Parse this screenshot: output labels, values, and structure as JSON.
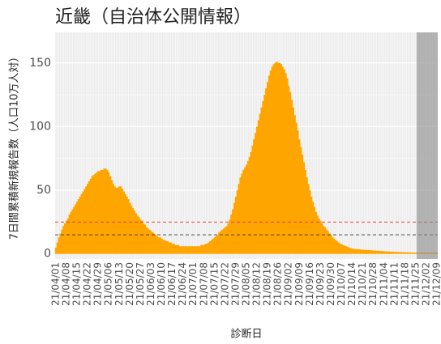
{
  "chart_data": {
    "type": "bar",
    "title": "近畿（自治体公開情報）",
    "xlabel": "診断日",
    "ylabel": "7日間累積新規報告数（人口10万人対）",
    "color": "#ffa500",
    "categories": [
      "21/04/01",
      null,
      null,
      null,
      null,
      null,
      null,
      "21/04/08",
      null,
      null,
      null,
      null,
      null,
      null,
      "21/04/15",
      null,
      null,
      null,
      null,
      null,
      null,
      "21/04/22",
      null,
      null,
      null,
      null,
      null,
      null,
      "21/04/29",
      null,
      null,
      null,
      null,
      null,
      null,
      "21/05/06",
      null,
      null,
      null,
      null,
      null,
      null,
      "21/05/13",
      null,
      null,
      null,
      null,
      null,
      null,
      "21/05/20",
      null,
      null,
      null,
      null,
      null,
      null,
      "21/05/27",
      null,
      null,
      null,
      null,
      null,
      null,
      "21/06/03",
      null,
      null,
      null,
      null,
      null,
      null,
      "21/06/10",
      null,
      null,
      null,
      null,
      null,
      null,
      "21/06/17",
      null,
      null,
      null,
      null,
      null,
      null,
      "21/06/24",
      null,
      null,
      null,
      null,
      null,
      null,
      "21/07/01",
      null,
      null,
      null,
      null,
      null,
      null,
      "21/07/08",
      null,
      null,
      null,
      null,
      null,
      null,
      "21/07/15",
      null,
      null,
      null,
      null,
      null,
      null,
      "21/07/22",
      null,
      null,
      null,
      null,
      null,
      null,
      "21/07/29",
      null,
      null,
      null,
      null,
      null,
      null,
      "21/08/05",
      null,
      null,
      null,
      null,
      null,
      null,
      "21/08/12",
      null,
      null,
      null,
      null,
      null,
      null,
      "21/08/19",
      null,
      null,
      null,
      null,
      null,
      null,
      "21/08/26",
      null,
      null,
      null,
      null,
      null,
      null,
      "21/09/02",
      null,
      null,
      null,
      null,
      null,
      null,
      "21/09/09",
      null,
      null,
      null,
      null,
      null,
      null,
      "21/09/16",
      null,
      null,
      null,
      null,
      null,
      null,
      "21/09/23",
      null,
      null,
      null,
      null,
      null,
      null,
      "21/09/30",
      null,
      null,
      null,
      null,
      null,
      null,
      "21/10/07",
      null,
      null,
      null,
      null,
      null,
      null,
      "21/10/14",
      null,
      null,
      null,
      null,
      null,
      null,
      "21/10/21",
      null,
      null,
      null,
      null,
      null,
      null,
      "21/10/28",
      null,
      null,
      null,
      null,
      null,
      null,
      "21/11/04",
      null,
      null,
      null,
      null,
      null,
      null,
      "21/11/11",
      null,
      null,
      null,
      null,
      null,
      null,
      "21/11/18",
      null,
      null,
      null,
      null,
      null,
      null,
      "21/11/25",
      null,
      null,
      null,
      null,
      null,
      null,
      "21/12/02",
      null,
      null,
      null,
      null,
      null,
      null,
      "21/12/09"
    ],
    "values": [
      5,
      9,
      13,
      16,
      19,
      22,
      24,
      26,
      28,
      31,
      33,
      35,
      37,
      39,
      41,
      43,
      45,
      47,
      49,
      51,
      53,
      55,
      57,
      59,
      61,
      62,
      63,
      64,
      65,
      65,
      66,
      66,
      67,
      67,
      66,
      64,
      61,
      58,
      55,
      53,
      52,
      52,
      53,
      53,
      51,
      49,
      47,
      45,
      43,
      40,
      38,
      36,
      34,
      32,
      30,
      29,
      27,
      26,
      24,
      23,
      21,
      20,
      19,
      18,
      17,
      16,
      15,
      14,
      13,
      13,
      12,
      11,
      11,
      10,
      10,
      9,
      9,
      8,
      8,
      7,
      7,
      7,
      6,
      6,
      6,
      6,
      6,
      6,
      6,
      6,
      6,
      6,
      6,
      6,
      6,
      6,
      7,
      7,
      7,
      8,
      8,
      9,
      10,
      11,
      12,
      13,
      14,
      15,
      17,
      18,
      19,
      20,
      21,
      22,
      24,
      27,
      31,
      35,
      40,
      45,
      50,
      55,
      60,
      63,
      66,
      68,
      70,
      73,
      76,
      80,
      85,
      90,
      95,
      100,
      105,
      110,
      115,
      120,
      125,
      130,
      135,
      140,
      144,
      147,
      149,
      150,
      151,
      150,
      150,
      149,
      147,
      145,
      142,
      138,
      132,
      127,
      121,
      115,
      109,
      103,
      97,
      90,
      84,
      78,
      72,
      66,
      60,
      55,
      50,
      45,
      41,
      37,
      33,
      30,
      28,
      26,
      24,
      22,
      21,
      19,
      18,
      16,
      15,
      13,
      12,
      11,
      10,
      9,
      8,
      7.5,
      7,
      6.5,
      6,
      5.5,
      5,
      4.5,
      4.2,
      4,
      3.8,
      3.7,
      3.6,
      3.5,
      3.4,
      3.3,
      3.2,
      3.1,
      3,
      3,
      2.9,
      2.8,
      2.7,
      2.6,
      2.5,
      2.5,
      2.4,
      2.3,
      2.2,
      2.1,
      2,
      2,
      1.9,
      1.8,
      1.8,
      1.7,
      1.6,
      1.6,
      1.5,
      1.5,
      1.4,
      1.4,
      1.3,
      1.3,
      1.2,
      1.2,
      1.2,
      1.1,
      1.1,
      1.1,
      1,
      1,
      1,
      1,
      1,
      1,
      1,
      1,
      1,
      1,
      1,
      1,
      1,
      1,
      1
    ],
    "ylim": [
      -4,
      174
    ],
    "yticks": [
      0,
      50,
      100,
      150
    ],
    "yminorticks": [
      25,
      75,
      125
    ],
    "grid": true,
    "hlines": [
      {
        "value": 25,
        "color": "#e8413a"
      },
      {
        "value": 15,
        "color": "#333333"
      }
    ],
    "shaded_range": [
      239,
      252
    ]
  }
}
